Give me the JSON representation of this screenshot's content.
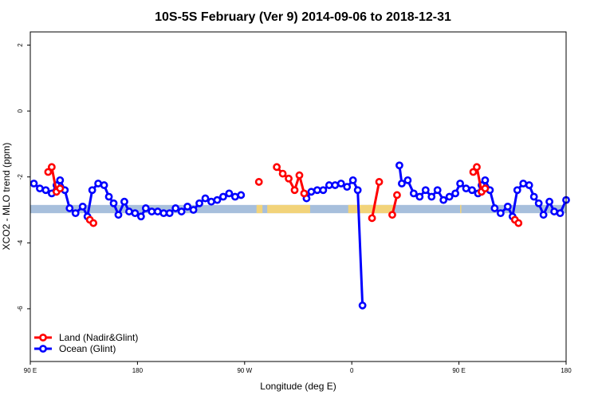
{
  "chart_data": {
    "type": "line",
    "title": "10S-5S February (Ver 9)   2014-09-06 to 2018-12-31",
    "xlabel": "Longitude (deg E)",
    "ylabel": "XCO2 - MLO trend (ppm)",
    "xlim": [
      90,
      540
    ],
    "ylim": [
      -7.6,
      2.4
    ],
    "x_ticks": [
      {
        "value": 90,
        "label": "90 E"
      },
      {
        "value": 180,
        "label": "180"
      },
      {
        "value": 270,
        "label": "90 W"
      },
      {
        "value": 360,
        "label": "0"
      },
      {
        "value": 450,
        "label": "90 E"
      },
      {
        "value": 540,
        "label": "180"
      }
    ],
    "y_ticks": [
      {
        "value": 2,
        "label": "2"
      },
      {
        "value": 0,
        "label": "0"
      },
      {
        "value": -2,
        "label": "-2"
      },
      {
        "value": -4,
        "label": "-4"
      },
      {
        "value": -6,
        "label": "-6"
      }
    ],
    "grid": false,
    "legend_position": "bottom-left",
    "band": {
      "y_top": -2.85,
      "y_bottom": -3.1,
      "ocean_color": "#a7bfdc",
      "land_color": "#f2d37a",
      "land_ranges": [
        [
          280,
          285
        ],
        [
          289,
          325
        ],
        [
          451,
          452
        ],
        [
          357,
          375
        ],
        [
          374,
          395
        ]
      ]
    },
    "series": [
      {
        "name": "Land (Nadir&Glint)",
        "color": "#ff0000",
        "segments": [
          [
            [
              105,
              -1.85
            ],
            [
              108,
              -1.7
            ],
            [
              112,
              -2.45
            ],
            [
              115,
              -2.35
            ]
          ],
          [
            [
              140,
              -3.3
            ],
            [
              143,
              -3.4
            ]
          ],
          [
            [
              282,
              -2.15
            ]
          ],
          [
            [
              297,
              -1.7
            ],
            [
              302,
              -1.9
            ],
            [
              307,
              -2.05
            ],
            [
              312,
              -2.4
            ],
            [
              316,
              -1.95
            ],
            [
              320,
              -2.5
            ]
          ],
          [
            [
              377,
              -3.25
            ],
            [
              383,
              -2.15
            ]
          ],
          [
            [
              394,
              -3.15
            ],
            [
              398,
              -2.55
            ]
          ],
          [
            [
              462,
              -1.85
            ],
            [
              465,
              -1.7
            ],
            [
              469,
              -2.45
            ],
            [
              472,
              -2.35
            ]
          ],
          [
            [
              497,
              -3.3
            ],
            [
              500,
              -3.4
            ]
          ]
        ]
      },
      {
        "name": "Ocean (Glint)",
        "color": "#0000ff",
        "segments": [
          [
            [
              93,
              -2.2
            ],
            [
              98,
              -2.35
            ],
            [
              103,
              -2.4
            ],
            [
              108,
              -2.5
            ],
            [
              112,
              -2.25
            ],
            [
              115,
              -2.1
            ],
            [
              119,
              -2.4
            ],
            [
              123,
              -2.95
            ],
            [
              128,
              -3.1
            ],
            [
              134,
              -2.9
            ],
            [
              138,
              -3.2
            ],
            [
              142,
              -2.4
            ],
            [
              147,
              -2.2
            ],
            [
              152,
              -2.25
            ],
            [
              156,
              -2.6
            ],
            [
              160,
              -2.8
            ],
            [
              164,
              -3.15
            ],
            [
              169,
              -2.75
            ],
            [
              173,
              -3.05
            ],
            [
              178,
              -3.1
            ],
            [
              183,
              -3.2
            ],
            [
              187,
              -2.95
            ],
            [
              192,
              -3.05
            ],
            [
              197,
              -3.05
            ],
            [
              202,
              -3.1
            ],
            [
              207,
              -3.1
            ],
            [
              212,
              -2.95
            ],
            [
              217,
              -3.05
            ],
            [
              222,
              -2.9
            ],
            [
              227,
              -3.0
            ],
            [
              232,
              -2.8
            ],
            [
              237,
              -2.65
            ],
            [
              242,
              -2.75
            ],
            [
              247,
              -2.7
            ],
            [
              252,
              -2.6
            ],
            [
              257,
              -2.5
            ],
            [
              262,
              -2.6
            ],
            [
              267,
              -2.55
            ]
          ],
          [
            [
              322,
              -2.65
            ],
            [
              326,
              -2.45
            ],
            [
              331,
              -2.4
            ],
            [
              336,
              -2.4
            ],
            [
              341,
              -2.25
            ],
            [
              346,
              -2.25
            ],
            [
              351,
              -2.2
            ],
            [
              356,
              -2.3
            ],
            [
              361,
              -2.1
            ],
            [
              365,
              -2.4
            ],
            [
              369,
              -5.9
            ]
          ],
          [
            [
              400,
              -1.65
            ],
            [
              402,
              -2.2
            ],
            [
              407,
              -2.1
            ],
            [
              412,
              -2.5
            ],
            [
              417,
              -2.6
            ],
            [
              422,
              -2.4
            ],
            [
              427,
              -2.6
            ],
            [
              432,
              -2.4
            ],
            [
              437,
              -2.7
            ],
            [
              442,
              -2.6
            ],
            [
              447,
              -2.5
            ],
            [
              451,
              -2.2
            ],
            [
              456,
              -2.35
            ],
            [
              461,
              -2.4
            ],
            [
              466,
              -2.5
            ],
            [
              469,
              -2.25
            ],
            [
              472,
              -2.1
            ],
            [
              476,
              -2.4
            ],
            [
              480,
              -2.95
            ],
            [
              485,
              -3.1
            ],
            [
              491,
              -2.9
            ],
            [
              495,
              -3.2
            ],
            [
              499,
              -2.4
            ],
            [
              504,
              -2.2
            ],
            [
              509,
              -2.25
            ],
            [
              513,
              -2.6
            ],
            [
              517,
              -2.8
            ],
            [
              521,
              -3.15
            ],
            [
              526,
              -2.75
            ],
            [
              530,
              -3.05
            ],
            [
              535,
              -3.1
            ],
            [
              540,
              -2.7
            ]
          ]
        ]
      }
    ]
  }
}
